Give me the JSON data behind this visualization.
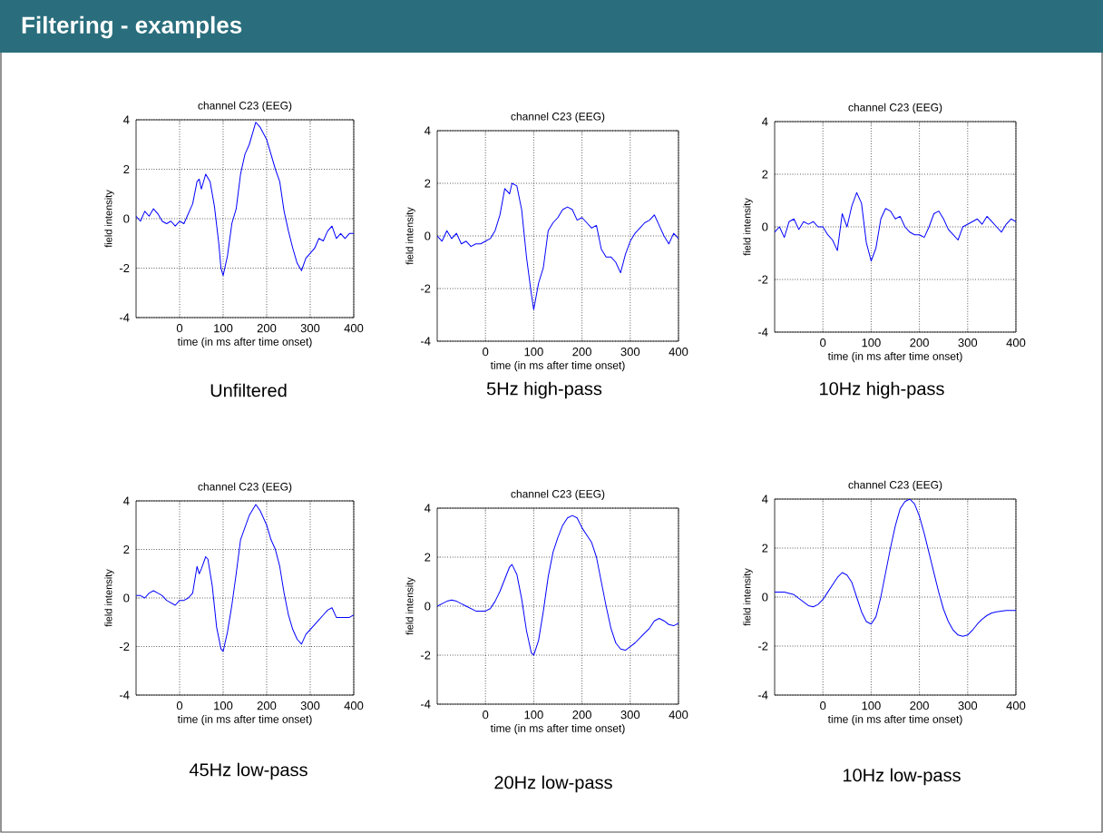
{
  "chart_data": [
    {
      "type": "line",
      "title": "channel C23 (EEG)",
      "xlabel": "time (in ms after time onset)",
      "ylabel": "field intensity",
      "annotations": [
        "Filtering - examples",
        "Unfiltered"
      ],
      "color": "#0000ff",
      "xlim": [
        -100,
        400
      ],
      "ylim": [
        -4,
        4
      ],
      "xticks": [
        0,
        100,
        200,
        300,
        400
      ],
      "yticks": [
        -4,
        -2,
        0,
        2,
        4
      ],
      "grid": true,
      "x": [
        -100,
        -90,
        -80,
        -70,
        -60,
        -50,
        -40,
        -30,
        -20,
        -10,
        0,
        10,
        20,
        30,
        40,
        45,
        50,
        60,
        70,
        80,
        90,
        95,
        100,
        110,
        120,
        130,
        140,
        150,
        160,
        170,
        175,
        185,
        200,
        210,
        220,
        230,
        240,
        250,
        260,
        270,
        280,
        290,
        300,
        310,
        320,
        330,
        340,
        350,
        360,
        370,
        380,
        390,
        400
      ],
      "values": [
        0.1,
        -0.1,
        0.3,
        0.1,
        0.4,
        0.2,
        -0.1,
        -0.2,
        -0.1,
        -0.3,
        -0.1,
        -0.2,
        0.2,
        0.6,
        1.5,
        1.6,
        1.2,
        1.8,
        1.5,
        0.5,
        -1.0,
        -2.0,
        -2.3,
        -1.5,
        -0.2,
        0.4,
        1.8,
        2.6,
        3.0,
        3.6,
        3.9,
        3.7,
        3.2,
        2.6,
        2.0,
        1.5,
        0.3,
        -0.5,
        -1.2,
        -1.8,
        -2.1,
        -1.6,
        -1.4,
        -1.2,
        -0.8,
        -0.9,
        -0.5,
        -0.3,
        -0.8,
        -0.6,
        -0.8,
        -0.6,
        -0.6
      ]
    },
    {
      "type": "line",
      "title": "channel C23 (EEG)",
      "xlabel": "time (in ms after time onset)",
      "ylabel": "field intensity",
      "annotations": [
        "5Hz high-pass"
      ],
      "color": "#0000ff",
      "xlim": [
        -100,
        400
      ],
      "ylim": [
        -4,
        4
      ],
      "xticks": [
        0,
        100,
        200,
        300,
        400
      ],
      "yticks": [
        -4,
        -2,
        0,
        2,
        4
      ],
      "grid": true,
      "x": [
        -100,
        -90,
        -80,
        -70,
        -60,
        -50,
        -40,
        -30,
        -20,
        -10,
        0,
        10,
        20,
        30,
        40,
        50,
        55,
        65,
        75,
        85,
        95,
        100,
        110,
        120,
        130,
        140,
        150,
        160,
        170,
        180,
        190,
        200,
        210,
        220,
        230,
        240,
        250,
        260,
        270,
        280,
        290,
        300,
        310,
        320,
        330,
        340,
        350,
        360,
        370,
        380,
        390,
        400
      ],
      "values": [
        0.0,
        -0.2,
        0.2,
        -0.1,
        0.1,
        -0.3,
        -0.2,
        -0.4,
        -0.3,
        -0.3,
        -0.2,
        -0.1,
        0.2,
        0.8,
        1.8,
        1.6,
        2.0,
        1.9,
        1.0,
        -0.8,
        -2.2,
        -2.8,
        -1.8,
        -1.2,
        0.2,
        0.5,
        0.7,
        1.0,
        1.1,
        1.0,
        0.6,
        0.7,
        0.5,
        0.3,
        0.4,
        -0.5,
        -0.8,
        -0.8,
        -1.0,
        -1.4,
        -0.7,
        -0.2,
        0.1,
        0.3,
        0.5,
        0.6,
        0.8,
        0.4,
        0.0,
        -0.3,
        0.1,
        -0.1
      ]
    },
    {
      "type": "line",
      "title": "channel C23 (EEG)",
      "xlabel": "time (in ms after time onset)",
      "ylabel": "field intensity",
      "annotations": [
        "10Hz high-pass"
      ],
      "color": "#0000ff",
      "xlim": [
        -100,
        400
      ],
      "ylim": [
        -4,
        4
      ],
      "xticks": [
        0,
        100,
        200,
        300,
        400
      ],
      "yticks": [
        -4,
        -2,
        0,
        2,
        4
      ],
      "grid": true,
      "x": [
        -100,
        -90,
        -80,
        -70,
        -60,
        -50,
        -40,
        -30,
        -20,
        -10,
        0,
        10,
        20,
        30,
        40,
        50,
        60,
        70,
        80,
        90,
        100,
        110,
        120,
        130,
        140,
        150,
        160,
        170,
        180,
        190,
        200,
        210,
        220,
        230,
        240,
        250,
        260,
        270,
        280,
        290,
        300,
        310,
        320,
        330,
        340,
        350,
        360,
        370,
        380,
        390,
        400
      ],
      "values": [
        -0.2,
        0.0,
        -0.4,
        0.2,
        0.3,
        -0.1,
        0.2,
        0.1,
        0.2,
        0.0,
        0.0,
        -0.3,
        -0.5,
        -0.9,
        0.5,
        0.0,
        0.8,
        1.3,
        0.9,
        -0.6,
        -1.3,
        -0.8,
        0.3,
        0.7,
        0.6,
        0.3,
        0.4,
        0.0,
        -0.2,
        -0.3,
        -0.3,
        -0.4,
        0.0,
        0.5,
        0.6,
        0.3,
        -0.1,
        -0.3,
        -0.5,
        0.0,
        0.1,
        0.2,
        0.3,
        0.1,
        0.4,
        0.2,
        0.0,
        -0.2,
        0.1,
        0.3,
        0.2
      ]
    },
    {
      "type": "line",
      "title": "channel C23 (EEG)",
      "xlabel": "time (in ms after time onset)",
      "ylabel": "field intensity",
      "annotations": [
        "45Hz low-pass"
      ],
      "color": "#0000ff",
      "xlim": [
        -100,
        400
      ],
      "ylim": [
        -4,
        4
      ],
      "xticks": [
        0,
        100,
        200,
        300,
        400
      ],
      "yticks": [
        -4,
        -2,
        0,
        2,
        4
      ],
      "grid": true,
      "x": [
        -100,
        -90,
        -80,
        -70,
        -60,
        -50,
        -40,
        -30,
        -20,
        -10,
        0,
        10,
        20,
        30,
        40,
        45,
        50,
        60,
        65,
        75,
        85,
        95,
        100,
        110,
        120,
        130,
        140,
        150,
        160,
        170,
        175,
        185,
        200,
        210,
        220,
        230,
        240,
        250,
        260,
        270,
        280,
        290,
        300,
        310,
        320,
        330,
        340,
        350,
        360,
        370,
        380,
        390,
        400
      ],
      "values": [
        0.1,
        0.1,
        0.0,
        0.2,
        0.3,
        0.2,
        0.1,
        -0.1,
        -0.2,
        -0.3,
        -0.1,
        -0.1,
        0.0,
        0.2,
        1.3,
        1.0,
        1.2,
        1.7,
        1.6,
        0.5,
        -1.2,
        -2.1,
        -2.2,
        -1.4,
        -0.3,
        1.0,
        2.4,
        2.9,
        3.4,
        3.7,
        3.85,
        3.6,
        3.0,
        2.4,
        2.0,
        1.3,
        0.2,
        -0.7,
        -1.3,
        -1.7,
        -1.9,
        -1.5,
        -1.3,
        -1.1,
        -0.9,
        -0.7,
        -0.5,
        -0.4,
        -0.8,
        -0.8,
        -0.8,
        -0.8,
        -0.7
      ]
    },
    {
      "type": "line",
      "title": "channel C23 (EEG)",
      "xlabel": "time (in ms after time onset)",
      "ylabel": "field intensity",
      "annotations": [
        "20Hz low-pass"
      ],
      "color": "#0000ff",
      "xlim": [
        -100,
        400
      ],
      "ylim": [
        -4,
        4
      ],
      "xticks": [
        0,
        100,
        200,
        300,
        400
      ],
      "yticks": [
        -4,
        -2,
        0,
        2,
        4
      ],
      "grid": true,
      "x": [
        -100,
        -80,
        -70,
        -60,
        -40,
        -20,
        0,
        10,
        20,
        30,
        40,
        50,
        55,
        65,
        75,
        85,
        95,
        100,
        110,
        120,
        130,
        140,
        150,
        160,
        170,
        180,
        190,
        200,
        210,
        220,
        230,
        240,
        250,
        260,
        270,
        280,
        290,
        300,
        310,
        320,
        330,
        340,
        350,
        360,
        370,
        380,
        390,
        400
      ],
      "values": [
        0.0,
        0.2,
        0.25,
        0.2,
        0.0,
        -0.2,
        -0.2,
        -0.1,
        0.2,
        0.6,
        1.1,
        1.6,
        1.7,
        1.3,
        0.3,
        -1.0,
        -1.9,
        -2.0,
        -1.4,
        -0.2,
        1.2,
        2.2,
        2.8,
        3.3,
        3.6,
        3.7,
        3.6,
        3.2,
        2.9,
        2.6,
        2.0,
        1.0,
        0.0,
        -0.9,
        -1.5,
        -1.75,
        -1.8,
        -1.65,
        -1.5,
        -1.3,
        -1.1,
        -0.9,
        -0.6,
        -0.5,
        -0.6,
        -0.75,
        -0.8,
        -0.7
      ]
    },
    {
      "type": "line",
      "title": "channel C23 (EEG)",
      "xlabel": "time (in ms after time onset)",
      "ylabel": "field intensity",
      "annotations": [
        "10Hz low-pass"
      ],
      "color": "#0000ff",
      "xlim": [
        -100,
        400
      ],
      "ylim": [
        -4,
        4
      ],
      "xticks": [
        0,
        100,
        200,
        300,
        400
      ],
      "yticks": [
        -4,
        -2,
        0,
        2,
        4
      ],
      "grid": true,
      "x": [
        -100,
        -80,
        -60,
        -40,
        -30,
        -20,
        -10,
        0,
        10,
        20,
        30,
        40,
        50,
        60,
        70,
        80,
        90,
        100,
        110,
        120,
        130,
        140,
        150,
        160,
        170,
        180,
        190,
        200,
        210,
        220,
        230,
        240,
        250,
        260,
        270,
        280,
        290,
        300,
        310,
        320,
        330,
        340,
        350,
        360,
        380,
        400
      ],
      "values": [
        0.2,
        0.2,
        0.1,
        -0.2,
        -0.35,
        -0.4,
        -0.3,
        -0.1,
        0.2,
        0.5,
        0.8,
        1.0,
        0.9,
        0.6,
        0.0,
        -0.6,
        -1.0,
        -1.1,
        -0.8,
        0.0,
        1.0,
        2.0,
        2.9,
        3.6,
        3.9,
        4.0,
        3.8,
        3.3,
        2.6,
        1.8,
        1.0,
        0.2,
        -0.5,
        -1.0,
        -1.35,
        -1.55,
        -1.6,
        -1.55,
        -1.35,
        -1.1,
        -0.9,
        -0.75,
        -0.65,
        -0.6,
        -0.55,
        -0.55
      ]
    }
  ]
}
